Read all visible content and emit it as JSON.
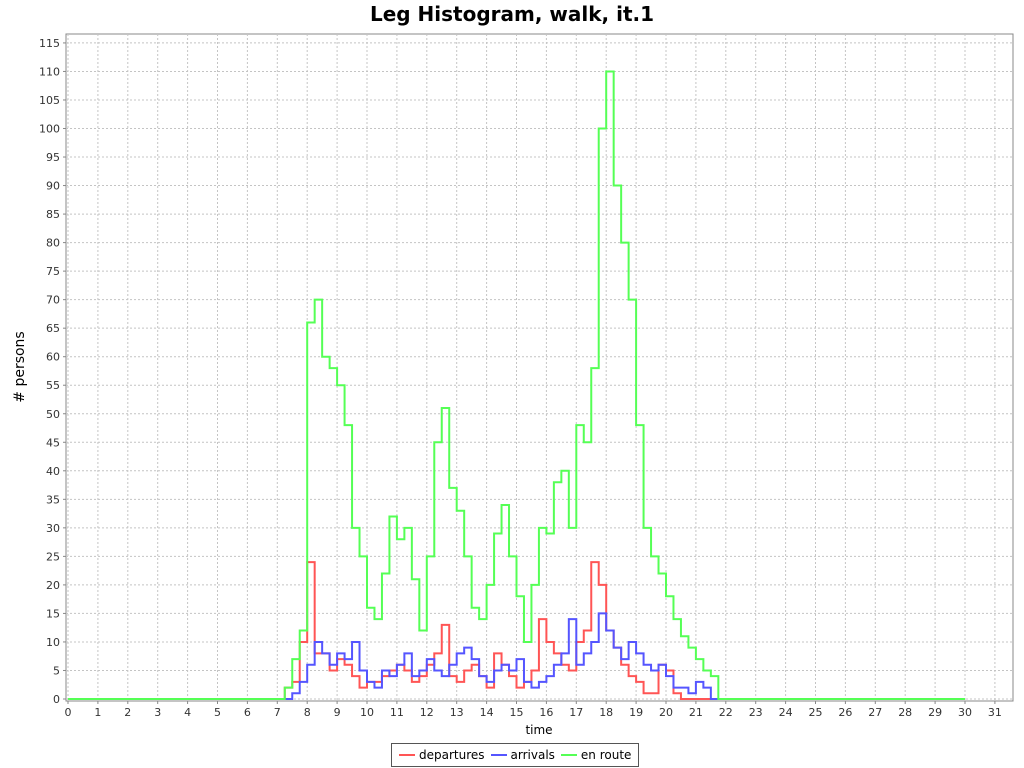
{
  "chart_data": {
    "type": "line",
    "title": "Leg Histogram, walk, it.1",
    "xlabel": "time",
    "ylabel": "# persons",
    "xlim": [
      0,
      31.4
    ],
    "ylim": [
      0,
      116
    ],
    "x_ticks": [
      "0",
      "1",
      "2",
      "3",
      "4",
      "5",
      "6",
      "7",
      "8",
      "9",
      "10",
      "11",
      "12",
      "13",
      "14",
      "15",
      "16",
      "17",
      "18",
      "19",
      "20",
      "21",
      "22",
      "23",
      "24",
      "25",
      "26",
      "27",
      "28",
      "29",
      "30",
      "31"
    ],
    "y_ticks": [
      "0",
      "5",
      "10",
      "15",
      "20",
      "25",
      "30",
      "35",
      "40",
      "45",
      "50",
      "55",
      "60",
      "65",
      "70",
      "75",
      "80",
      "85",
      "90",
      "95",
      "100",
      "105",
      "110",
      "115"
    ],
    "grid": true,
    "legend_position": "bottom",
    "step": true,
    "x": [
      0,
      7,
      7.25,
      7.5,
      7.75,
      8,
      8.25,
      8.5,
      8.75,
      9,
      9.25,
      9.5,
      9.75,
      10,
      10.25,
      10.5,
      10.75,
      11,
      11.25,
      11.5,
      11.75,
      12,
      12.25,
      12.5,
      12.75,
      13,
      13.25,
      13.5,
      13.75,
      14,
      14.25,
      14.5,
      14.75,
      15,
      15.25,
      15.5,
      15.75,
      16,
      16.25,
      16.5,
      16.75,
      17,
      17.25,
      17.5,
      17.75,
      18,
      18.25,
      18.5,
      18.75,
      19,
      19.25,
      19.5,
      19.75,
      20,
      20.25,
      20.5,
      20.75,
      21,
      21.25,
      21.5,
      21.75,
      22,
      30
    ],
    "series": [
      {
        "name": "departures",
        "color": "#ff5555",
        "values": [
          0,
          0,
          2,
          3,
          10,
          24,
          8,
          8,
          5,
          7,
          6,
          4,
          2,
          3,
          3,
          4,
          5,
          6,
          5,
          3,
          4,
          6,
          8,
          13,
          4,
          3,
          5,
          6,
          4,
          2,
          8,
          6,
          4,
          2,
          3,
          5,
          14,
          10,
          8,
          6,
          5,
          10,
          12,
          24,
          20,
          12,
          9,
          6,
          4,
          3,
          1,
          1,
          6,
          5,
          1,
          0,
          0,
          0,
          0,
          0,
          0,
          0,
          0
        ]
      },
      {
        "name": "arrivals",
        "color": "#5555ff",
        "values": [
          0,
          0,
          0,
          1,
          3,
          6,
          10,
          8,
          6,
          8,
          7,
          10,
          5,
          3,
          2,
          5,
          4,
          6,
          8,
          4,
          5,
          7,
          5,
          4,
          6,
          8,
          9,
          7,
          4,
          3,
          5,
          6,
          5,
          7,
          3,
          2,
          3,
          4,
          6,
          8,
          14,
          6,
          8,
          10,
          15,
          12,
          9,
          7,
          10,
          8,
          6,
          5,
          6,
          4,
          2,
          2,
          1,
          3,
          2,
          0,
          0,
          0,
          0
        ]
      },
      {
        "name": "en route",
        "color": "#55ff55",
        "values": [
          0,
          0,
          2,
          7,
          12,
          66,
          70,
          60,
          58,
          55,
          48,
          30,
          25,
          16,
          14,
          22,
          32,
          28,
          30,
          21,
          12,
          25,
          45,
          51,
          37,
          33,
          25,
          16,
          14,
          20,
          29,
          34,
          25,
          18,
          10,
          20,
          30,
          29,
          38,
          40,
          30,
          48,
          45,
          58,
          100,
          110,
          90,
          80,
          70,
          48,
          30,
          25,
          22,
          18,
          14,
          11,
          9,
          7,
          5,
          4,
          0,
          0,
          0
        ]
      }
    ]
  }
}
